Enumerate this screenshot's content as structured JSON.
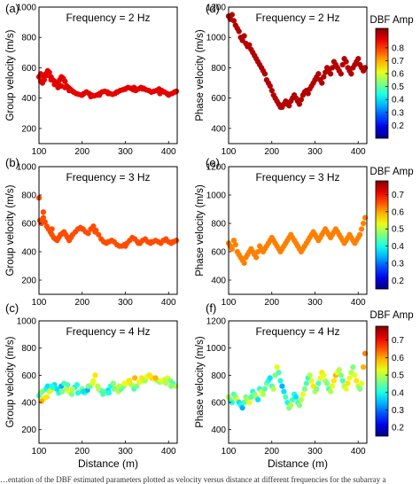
{
  "caption": "…entation of the DBF estimated parameters plotted as velocity versus distance at different frequencies for the subarray a",
  "colorbar": {
    "label": "DBF Amp",
    "ticks_top": [
      "0.8",
      "0.7",
      "0.6",
      "0.5",
      "0.4",
      "0.3",
      "0.2"
    ],
    "ticks_mid": [
      "0.7",
      "0.6",
      "0.5",
      "0.4",
      "0.3",
      "0.2"
    ],
    "ticks_bot": [
      "0.7",
      "0.6",
      "0.5",
      "0.4",
      "0.3",
      "0.2"
    ]
  },
  "colors": {
    "jet_low": "#00008f",
    "jet_mid": "#80ff80",
    "jet_high": "#800000"
  },
  "chart_data": [
    {
      "panel": "(a)",
      "type": "scatter",
      "title": "Frequency = 2 Hz",
      "xlabel": "",
      "ylabel": "Group velocity (m/s)",
      "xlim": [
        100,
        420
      ],
      "ylim": [
        100,
        1000
      ],
      "xticks": [
        "100",
        "200",
        "300",
        "400"
      ],
      "yticks": [
        "200",
        "400",
        "600",
        "800",
        "1000"
      ],
      "x": [
        100,
        104,
        108,
        112,
        116,
        120,
        124,
        128,
        132,
        136,
        140,
        144,
        148,
        152,
        156,
        160,
        164,
        168,
        172,
        176,
        180,
        186,
        192,
        198,
        204,
        210,
        216,
        222,
        228,
        234,
        240,
        246,
        252,
        258,
        264,
        270,
        276,
        282,
        288,
        294,
        300,
        306,
        312,
        318,
        324,
        330,
        336,
        342,
        348,
        354,
        360,
        366,
        372,
        378,
        384,
        390,
        396,
        402,
        408,
        414,
        418,
        104,
        112,
        120,
        128,
        136,
        144,
        152,
        160,
        170,
        180,
        200,
        220,
        240,
        260,
        280,
        300,
        320,
        340,
        360,
        380,
        400,
        415
      ],
      "y": [
        540,
        510,
        500,
        520,
        560,
        580,
        570,
        540,
        520,
        510,
        490,
        500,
        520,
        540,
        530,
        510,
        480,
        470,
        460,
        450,
        440,
        430,
        425,
        420,
        430,
        440,
        430,
        420,
        415,
        420,
        430,
        440,
        445,
        440,
        430,
        425,
        430,
        440,
        450,
        455,
        460,
        470,
        465,
        455,
        450,
        460,
        470,
        465,
        455,
        450,
        440,
        445,
        450,
        460,
        450,
        440,
        430,
        425,
        430,
        440,
        445,
        560,
        540,
        550,
        520,
        490,
        470,
        480,
        470,
        450,
        440,
        420,
        410,
        420,
        430,
        440,
        460,
        470,
        460,
        440,
        430,
        420,
        440
      ],
      "z": [
        0.9
      ]
    },
    {
      "panel": "(b)",
      "type": "scatter",
      "title": "Frequency = 3 Hz",
      "xlabel": "",
      "ylabel": "Group velocity (m/s)",
      "xlim": [
        100,
        420
      ],
      "ylim": [
        100,
        1000
      ],
      "xticks": [
        "100",
        "200",
        "300",
        "400"
      ],
      "yticks": [
        "200",
        "400",
        "600",
        "800",
        "1000"
      ],
      "x": [
        100,
        102,
        106,
        110,
        114,
        118,
        122,
        126,
        130,
        134,
        138,
        142,
        146,
        150,
        154,
        158,
        162,
        166,
        170,
        174,
        178,
        184,
        190,
        196,
        202,
        208,
        214,
        220,
        226,
        232,
        238,
        244,
        250,
        256,
        262,
        268,
        274,
        280,
        286,
        292,
        298,
        304,
        310,
        316,
        322,
        328,
        334,
        340,
        346,
        352,
        358,
        364,
        370,
        376,
        382,
        388,
        394,
        400,
        406,
        412,
        418,
        110,
        130,
        150,
        170,
        200,
        230,
        260,
        300,
        330,
        360,
        390,
        410
      ],
      "y": [
        780,
        620,
        600,
        640,
        610,
        580,
        560,
        540,
        520,
        500,
        490,
        480,
        500,
        520,
        530,
        540,
        520,
        500,
        480,
        500,
        520,
        540,
        560,
        570,
        560,
        540,
        530,
        560,
        580,
        550,
        520,
        490,
        470,
        460,
        470,
        480,
        470,
        450,
        440,
        440,
        450,
        460,
        480,
        500,
        490,
        470,
        460,
        480,
        490,
        470,
        460,
        470,
        480,
        470,
        460,
        480,
        490,
        470,
        460,
        470,
        480,
        680,
        560,
        520,
        500,
        560,
        540,
        470,
        440,
        460,
        470,
        480,
        470
      ],
      "z": [
        0.8
      ]
    },
    {
      "panel": "(c)",
      "type": "scatter",
      "title": "Frequency = 4 Hz",
      "xlabel": "Distance (m)",
      "ylabel": "Group velocity (m/s)",
      "xlim": [
        100,
        420
      ],
      "ylim": [
        100,
        1000
      ],
      "xticks": [
        "100",
        "200",
        "300",
        "400"
      ],
      "yticks": [
        "200",
        "400",
        "600",
        "800",
        "1000"
      ],
      "x": [
        100,
        104,
        108,
        112,
        116,
        120,
        124,
        128,
        132,
        136,
        140,
        146,
        152,
        158,
        164,
        170,
        176,
        182,
        188,
        194,
        200,
        206,
        212,
        218,
        224,
        230,
        236,
        242,
        248,
        254,
        260,
        266,
        272,
        278,
        284,
        290,
        296,
        302,
        308,
        314,
        320,
        326,
        332,
        338,
        344,
        350,
        356,
        362,
        368,
        374,
        380,
        386,
        392,
        398,
        404,
        410,
        416,
        106,
        118,
        130,
        142,
        154,
        166,
        178,
        190,
        202,
        214,
        226,
        238,
        250,
        262,
        274,
        286,
        298,
        310,
        322,
        334,
        346,
        358,
        370,
        382,
        394,
        406
      ],
      "y": [
        450,
        470,
        480,
        430,
        500,
        520,
        480,
        490,
        510,
        530,
        500,
        470,
        520,
        540,
        500,
        480,
        460,
        510,
        530,
        480,
        500,
        470,
        490,
        520,
        540,
        600,
        520,
        490,
        460,
        470,
        490,
        520,
        540,
        510,
        480,
        500,
        520,
        540,
        560,
        530,
        500,
        520,
        550,
        580,
        560,
        590,
        600,
        580,
        570,
        560,
        550,
        560,
        570,
        580,
        560,
        540,
        520,
        410,
        440,
        520,
        500,
        480,
        530,
        500,
        470,
        480,
        520,
        560,
        500,
        480,
        470,
        500,
        520,
        540,
        560,
        580,
        550,
        560,
        590,
        580,
        560,
        540,
        520
      ],
      "z": [
        0.45,
        0.5,
        0.5,
        0.65,
        0.4,
        0.35,
        0.55,
        0.6,
        0.45,
        0.35,
        0.5,
        0.4,
        0.3,
        0.45,
        0.55,
        0.6,
        0.5,
        0.35,
        0.4,
        0.55,
        0.5,
        0.45,
        0.3,
        0.4,
        0.6,
        0.65,
        0.55,
        0.4,
        0.45,
        0.5,
        0.35,
        0.4,
        0.5,
        0.6,
        0.55,
        0.45,
        0.5,
        0.6,
        0.65,
        0.55,
        0.45,
        0.5,
        0.6,
        0.65,
        0.55,
        0.6,
        0.65,
        0.7,
        0.6,
        0.55,
        0.5,
        0.45,
        0.55,
        0.6,
        0.5,
        0.45,
        0.55,
        0.7,
        0.65,
        0.4,
        0.35,
        0.5,
        0.45,
        0.55,
        0.4,
        0.35,
        0.5,
        0.6,
        0.55,
        0.45,
        0.4,
        0.5,
        0.55,
        0.6,
        0.65,
        0.7,
        0.6,
        0.55,
        0.65,
        0.7,
        0.6,
        0.55,
        0.5
      ]
    },
    {
      "panel": "(d)",
      "type": "scatter",
      "title": "Frequency = 2 Hz",
      "xlabel": "",
      "ylabel": "Phase velocity (m/s)",
      "xlim": [
        100,
        420
      ],
      "ylim": [
        300,
        1200
      ],
      "xticks": [
        "100",
        "200",
        "300",
        "400"
      ],
      "yticks": [
        "400",
        "600",
        "800",
        "1000",
        "1200"
      ],
      "x": [
        100,
        104,
        108,
        112,
        116,
        120,
        124,
        128,
        132,
        136,
        140,
        144,
        148,
        152,
        156,
        160,
        164,
        168,
        172,
        176,
        180,
        184,
        188,
        192,
        196,
        200,
        204,
        208,
        212,
        216,
        220,
        224,
        228,
        232,
        236,
        240,
        244,
        248,
        252,
        256,
        260,
        264,
        268,
        272,
        276,
        280,
        284,
        288,
        292,
        296,
        300,
        304,
        308,
        312,
        316,
        320,
        324,
        328,
        332,
        336,
        340,
        344,
        348,
        352,
        356,
        360,
        364,
        368,
        372,
        376,
        380,
        384,
        388,
        392,
        396,
        400,
        404,
        408,
        412,
        416
      ],
      "y": [
        1140,
        1120,
        1150,
        1110,
        1080,
        1060,
        1040,
        1000,
        980,
        1010,
        960,
        940,
        950,
        920,
        900,
        880,
        860,
        840,
        820,
        800,
        780,
        760,
        720,
        700,
        680,
        650,
        620,
        600,
        580,
        560,
        540,
        540,
        560,
        580,
        560,
        550,
        580,
        600,
        620,
        600,
        580,
        560,
        590,
        620,
        640,
        650,
        630,
        660,
        680,
        700,
        720,
        740,
        760,
        720,
        700,
        740,
        770,
        800,
        780,
        760,
        800,
        840,
        820,
        800,
        780,
        760,
        820,
        860,
        840,
        800,
        780,
        760,
        800,
        820,
        840,
        860,
        820,
        800,
        780,
        800
      ],
      "z": [
        0.95
      ]
    },
    {
      "panel": "(e)",
      "type": "scatter",
      "title": "Frequency = 3 Hz",
      "xlabel": "",
      "ylabel": "Phase velocity (m/s)",
      "xlim": [
        100,
        420
      ],
      "ylim": [
        300,
        1200
      ],
      "xticks": [
        "100",
        "200",
        "300",
        "400"
      ],
      "yticks": [
        "400",
        "600",
        "800",
        "1000",
        "1200"
      ],
      "x": [
        100,
        104,
        108,
        112,
        116,
        120,
        124,
        128,
        132,
        136,
        140,
        144,
        148,
        152,
        156,
        160,
        164,
        168,
        172,
        176,
        180,
        184,
        188,
        192,
        196,
        200,
        204,
        208,
        212,
        216,
        220,
        224,
        228,
        232,
        236,
        240,
        244,
        248,
        252,
        256,
        260,
        264,
        268,
        272,
        276,
        280,
        284,
        288,
        292,
        296,
        300,
        304,
        308,
        312,
        316,
        320,
        324,
        328,
        332,
        336,
        340,
        344,
        348,
        352,
        356,
        360,
        364,
        368,
        372,
        376,
        380,
        384,
        388,
        392,
        396,
        400,
        404,
        408,
        412,
        416
      ],
      "y": [
        660,
        640,
        620,
        680,
        650,
        600,
        580,
        560,
        540,
        520,
        560,
        580,
        600,
        620,
        600,
        580,
        560,
        600,
        640,
        620,
        600,
        620,
        640,
        660,
        680,
        700,
        680,
        660,
        640,
        620,
        600,
        620,
        640,
        660,
        680,
        700,
        720,
        700,
        680,
        660,
        640,
        620,
        600,
        620,
        640,
        660,
        680,
        700,
        720,
        740,
        720,
        700,
        680,
        700,
        720,
        740,
        760,
        740,
        720,
        700,
        720,
        740,
        760,
        740,
        720,
        700,
        680,
        660,
        680,
        700,
        720,
        700,
        680,
        660,
        680,
        700,
        720,
        760,
        800,
        840
      ],
      "z": [
        0.75
      ]
    },
    {
      "panel": "(f)",
      "type": "scatter",
      "title": "Frequency = 4 Hz",
      "xlabel": "Distance (m)",
      "ylabel": "Phase velocity (m/s)",
      "xlim": [
        100,
        420
      ],
      "ylim": [
        300,
        1200
      ],
      "xticks": [
        "100",
        "200",
        "300",
        "400"
      ],
      "yticks": [
        "400",
        "600",
        "800",
        "1000",
        "1200"
      ],
      "x": [
        100,
        104,
        108,
        112,
        116,
        120,
        124,
        128,
        132,
        136,
        140,
        144,
        148,
        152,
        156,
        160,
        164,
        168,
        172,
        176,
        180,
        184,
        188,
        192,
        196,
        200,
        204,
        208,
        212,
        216,
        220,
        224,
        228,
        232,
        236,
        240,
        244,
        248,
        252,
        256,
        260,
        264,
        268,
        272,
        276,
        280,
        284,
        288,
        292,
        296,
        300,
        304,
        308,
        312,
        316,
        320,
        324,
        328,
        332,
        336,
        340,
        344,
        348,
        352,
        356,
        360,
        364,
        368,
        372,
        376,
        380,
        384,
        388,
        392,
        396,
        400,
        404,
        408,
        412,
        416
      ],
      "y": [
        640,
        620,
        600,
        660,
        640,
        620,
        600,
        580,
        560,
        600,
        640,
        620,
        600,
        640,
        680,
        660,
        640,
        620,
        700,
        680,
        660,
        700,
        740,
        760,
        780,
        720,
        700,
        800,
        860,
        820,
        760,
        720,
        680,
        640,
        600,
        560,
        580,
        620,
        660,
        640,
        600,
        580,
        620,
        660,
        700,
        740,
        780,
        800,
        760,
        720,
        680,
        700,
        740,
        780,
        820,
        800,
        760,
        740,
        700,
        680,
        720,
        760,
        800,
        820,
        840,
        800,
        760,
        720,
        700,
        740,
        780,
        820,
        860,
        800,
        760,
        720,
        700,
        740,
        860,
        960
      ],
      "z": [
        0.55,
        0.5,
        0.4,
        0.45,
        0.5,
        0.6,
        0.35,
        0.4,
        0.3,
        0.45,
        0.5,
        0.55,
        0.6,
        0.45,
        0.4,
        0.5,
        0.55,
        0.35,
        0.4,
        0.6,
        0.55,
        0.45,
        0.5,
        0.4,
        0.35,
        0.45,
        0.55,
        0.5,
        0.6,
        0.45,
        0.4,
        0.3,
        0.35,
        0.45,
        0.4,
        0.5,
        0.55,
        0.45,
        0.4,
        0.35,
        0.45,
        0.5,
        0.55,
        0.6,
        0.5,
        0.45,
        0.4,
        0.55,
        0.6,
        0.65,
        0.55,
        0.5,
        0.45,
        0.6,
        0.65,
        0.6,
        0.55,
        0.5,
        0.45,
        0.55,
        0.6,
        0.65,
        0.7,
        0.6,
        0.55,
        0.5,
        0.45,
        0.55,
        0.6,
        0.65,
        0.6,
        0.55,
        0.5,
        0.6,
        0.65,
        0.55,
        0.5,
        0.6,
        0.7,
        0.75
      ]
    }
  ]
}
